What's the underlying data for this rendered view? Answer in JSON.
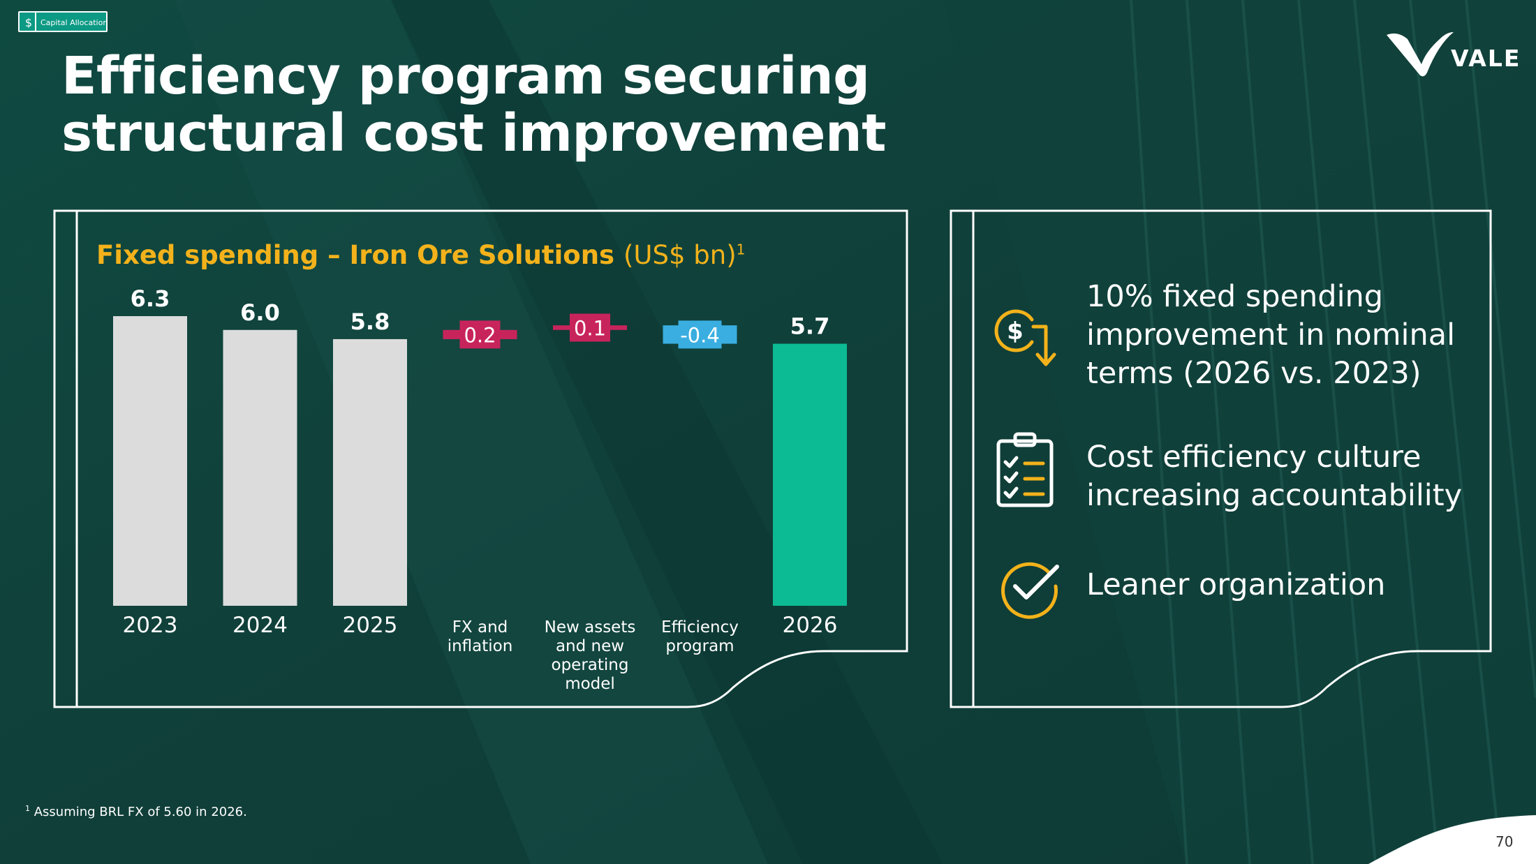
{
  "section_tag": "Capital Allocation",
  "title_line1": "Efficiency program securing",
  "title_line2": "structural cost improvement",
  "logo_text": "VALE",
  "chart_panel": {
    "title_bold": "Fixed spending – Iron Ore Solutions",
    "title_unit": "(US$ bn)",
    "title_sup": "1"
  },
  "chart_data": {
    "type": "bar",
    "subtype": "waterfall",
    "title": "Fixed spending – Iron Ore Solutions (US$ bn)",
    "categories": [
      "2023",
      "2024",
      "2025",
      "FX and inflation",
      "New assets and new operating model",
      "Efficiency program",
      "2026"
    ],
    "category_lines": [
      [
        "2023"
      ],
      [
        "2024"
      ],
      [
        "2025"
      ],
      [
        "FX and",
        "inflation"
      ],
      [
        "New assets",
        "and new",
        "operating",
        "model"
      ],
      [
        "Efficiency",
        "program"
      ],
      [
        "2026"
      ]
    ],
    "values": [
      6.3,
      6.0,
      5.8,
      0.2,
      0.1,
      -0.4,
      5.7
    ],
    "value_labels": [
      "6.3",
      "6.0",
      "5.8",
      "0.2",
      "0.1",
      "-0.4",
      "5.7"
    ],
    "kinds": [
      "total",
      "total",
      "total",
      "delta",
      "delta",
      "delta",
      "total"
    ],
    "colors": [
      "#dcdcdc",
      "#dcdcdc",
      "#dcdcdc",
      "#c8245c",
      "#c8245c",
      "#3aaee0",
      "#0cbb94"
    ],
    "ylim": [
      0,
      6.3
    ],
    "grid": false,
    "legend": "none"
  },
  "bullets": [
    {
      "icon": "dollar-down-arrow-icon",
      "lines": [
        "10% fixed spending",
        "improvement in nominal",
        "terms (2026 vs. 2023)"
      ]
    },
    {
      "icon": "checklist-icon",
      "lines": [
        "Cost efficiency culture",
        "increasing accountability"
      ]
    },
    {
      "icon": "check-circle-icon",
      "lines": [
        "Leaner organization"
      ]
    }
  ],
  "footnote_sup": "1",
  "footnote": "Assuming BRL FX of 5.60 in 2026.",
  "page_number": "70",
  "colors": {
    "background": "#0f3f39",
    "accent_yellow": "#f3b21b",
    "green": "#0cbb94",
    "magenta": "#c8245c",
    "blue": "#3aaee0",
    "grey": "#dcdcdc"
  }
}
